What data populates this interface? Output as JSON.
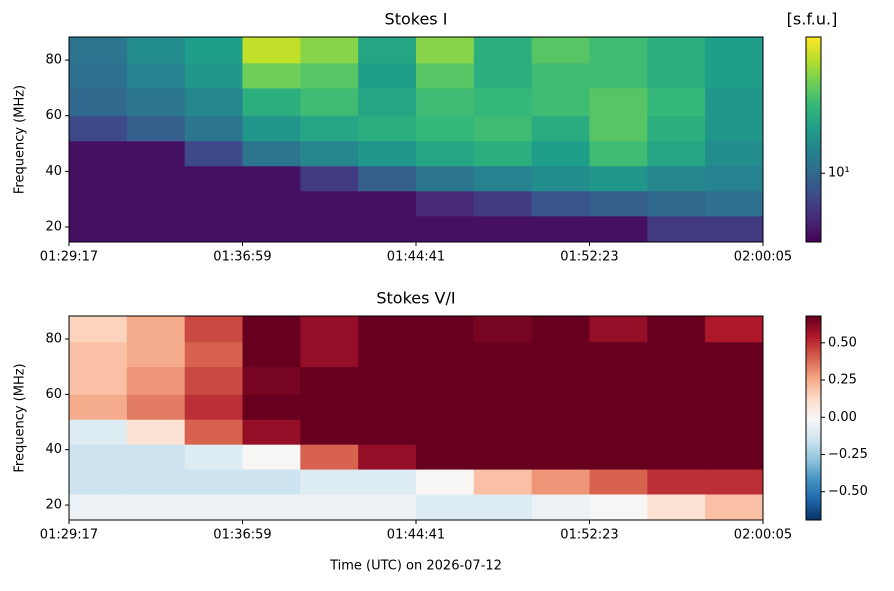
{
  "chart_data": [
    {
      "type": "heatmap",
      "title": "Stokes I",
      "ylabel": "Frequency (MHz)",
      "xlim": [
        5357,
        7205
      ],
      "xticks": [
        {
          "value": 5357,
          "label": "01:29:17"
        },
        {
          "value": 5819,
          "label": "01:36:59"
        },
        {
          "value": 6281,
          "label": "01:44:41"
        },
        {
          "value": 6743,
          "label": "01:52:23"
        },
        {
          "value": 7205,
          "label": "02:00:05"
        }
      ],
      "ylim": [
        14.6,
        88.3
      ],
      "yticks": [
        20,
        40,
        60,
        80
      ],
      "x_edges": [
        5357,
        5511,
        5665,
        5819,
        5973,
        6127,
        6281,
        6435,
        6589,
        6743,
        6897,
        7051,
        7205
      ],
      "y_edges": [
        14.6,
        24,
        33,
        42,
        51,
        60,
        70,
        79,
        88.3
      ],
      "values": [
        [
          4,
          4,
          4,
          4,
          4,
          4,
          4,
          4,
          4,
          4,
          6,
          6
        ],
        [
          4,
          4,
          4,
          4,
          4,
          4,
          5,
          6,
          8,
          9,
          10,
          11
        ],
        [
          4,
          4,
          4,
          4,
          6,
          9,
          12,
          14,
          16,
          18,
          15,
          14
        ],
        [
          4,
          4,
          7,
          12,
          15,
          18,
          22,
          25,
          20,
          30,
          22,
          16
        ],
        [
          7,
          9,
          12,
          18,
          22,
          25,
          28,
          30,
          24,
          35,
          25,
          18
        ],
        [
          10,
          12,
          15,
          25,
          30,
          22,
          30,
          28,
          30,
          35,
          28,
          18
        ],
        [
          11,
          14,
          18,
          40,
          35,
          20,
          35,
          25,
          30,
          30,
          25,
          20
        ],
        [
          12,
          16,
          20,
          60,
          45,
          22,
          45,
          25,
          35,
          30,
          25,
          20
        ]
      ],
      "colormap": "viridis",
      "color_scale": "log",
      "clim": [
        3.5,
        80
      ],
      "cticks": [
        {
          "value": 10,
          "label": "10¹"
        }
      ],
      "colorbar_label": "[s.f.u.]"
    },
    {
      "type": "heatmap",
      "title": "Stokes V/I",
      "ylabel": "Frequency (MHz)",
      "xlabel": "Time (UTC) on 2026-07-12",
      "xlim": [
        5357,
        7205
      ],
      "xticks": [
        {
          "value": 5357,
          "label": "01:29:17"
        },
        {
          "value": 5819,
          "label": "01:36:59"
        },
        {
          "value": 6281,
          "label": "01:44:41"
        },
        {
          "value": 6743,
          "label": "01:52:23"
        },
        {
          "value": 7205,
          "label": "02:00:05"
        }
      ],
      "ylim": [
        14.6,
        88.3
      ],
      "yticks": [
        20,
        40,
        60,
        80
      ],
      "x_edges": [
        5357,
        5511,
        5665,
        5819,
        5973,
        6127,
        6281,
        6435,
        6589,
        6743,
        6897,
        7051,
        7205
      ],
      "y_edges": [
        14.6,
        24,
        33,
        42,
        51,
        60,
        70,
        79,
        88.3
      ],
      "values": [
        [
          -0.05,
          -0.05,
          -0.05,
          -0.05,
          -0.05,
          -0.05,
          -0.1,
          -0.1,
          -0.05,
          0,
          0.1,
          0.2
        ],
        [
          -0.15,
          -0.15,
          -0.15,
          -0.15,
          -0.1,
          -0.1,
          0,
          0.2,
          0.3,
          0.4,
          0.5,
          0.5
        ],
        [
          -0.15,
          -0.15,
          -0.1,
          0,
          0.4,
          0.6,
          0.68,
          0.68,
          0.68,
          0.68,
          0.68,
          0.68
        ],
        [
          -0.1,
          0.1,
          0.4,
          0.6,
          0.68,
          0.68,
          0.68,
          0.68,
          0.68,
          0.68,
          0.68,
          0.68
        ],
        [
          0.25,
          0.35,
          0.5,
          0.68,
          0.68,
          0.68,
          0.68,
          0.68,
          0.68,
          0.68,
          0.68,
          0.68
        ],
        [
          0.2,
          0.3,
          0.45,
          0.65,
          0.68,
          0.68,
          0.68,
          0.68,
          0.68,
          0.68,
          0.68,
          0.68
        ],
        [
          0.2,
          0.25,
          0.4,
          0.68,
          0.6,
          0.68,
          0.68,
          0.68,
          0.68,
          0.68,
          0.68,
          0.68
        ],
        [
          0.15,
          0.25,
          0.45,
          0.68,
          0.6,
          0.68,
          0.68,
          0.65,
          0.68,
          0.6,
          0.68,
          0.55
        ]
      ],
      "colormap": "RdBu_r",
      "color_scale": "linear",
      "clim": [
        -0.69,
        0.68
      ],
      "cticks": [
        {
          "value": -0.5,
          "label": "−0.50"
        },
        {
          "value": -0.25,
          "label": "−0.25"
        },
        {
          "value": 0,
          "label": "0.00"
        },
        {
          "value": 0.25,
          "label": "0.25"
        },
        {
          "value": 0.5,
          "label": "0.50"
        }
      ]
    }
  ]
}
